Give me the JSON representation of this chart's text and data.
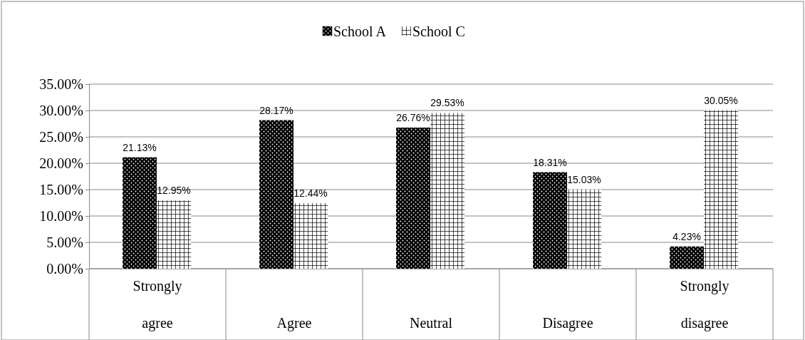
{
  "chart_data": {
    "type": "bar",
    "categories": [
      "Strongly agree",
      "Agree",
      "Neutral",
      "Disagree",
      "Strongly disagree"
    ],
    "series": [
      {
        "name": "School A",
        "color": "#000000",
        "values": [
          21.13,
          28.17,
          26.76,
          18.31,
          4.23
        ],
        "value_labels": [
          "21.13%",
          "28.17%",
          "26.76%",
          "18.31%",
          "4.23%"
        ]
      },
      {
        "name": "School C",
        "color": "#ffffff",
        "values": [
          12.95,
          12.44,
          29.53,
          15.03,
          30.05
        ],
        "value_labels": [
          "12.95%",
          "12.44%",
          "29.53%",
          "15.03%",
          "30.05%"
        ]
      }
    ],
    "ylim": [
      0,
      35
    ],
    "yticks": [
      {
        "value": 0,
        "label": "0.00%"
      },
      {
        "value": 5,
        "label": "5.00%"
      },
      {
        "value": 10,
        "label": "10.00%"
      },
      {
        "value": 15,
        "label": "15.00%"
      },
      {
        "value": 20,
        "label": "20.00%"
      },
      {
        "value": 25,
        "label": "25.00%"
      },
      {
        "value": 30,
        "label": "30.00%"
      },
      {
        "value": 35,
        "label": "35.00%"
      }
    ],
    "grid": "y",
    "legend": "top"
  }
}
